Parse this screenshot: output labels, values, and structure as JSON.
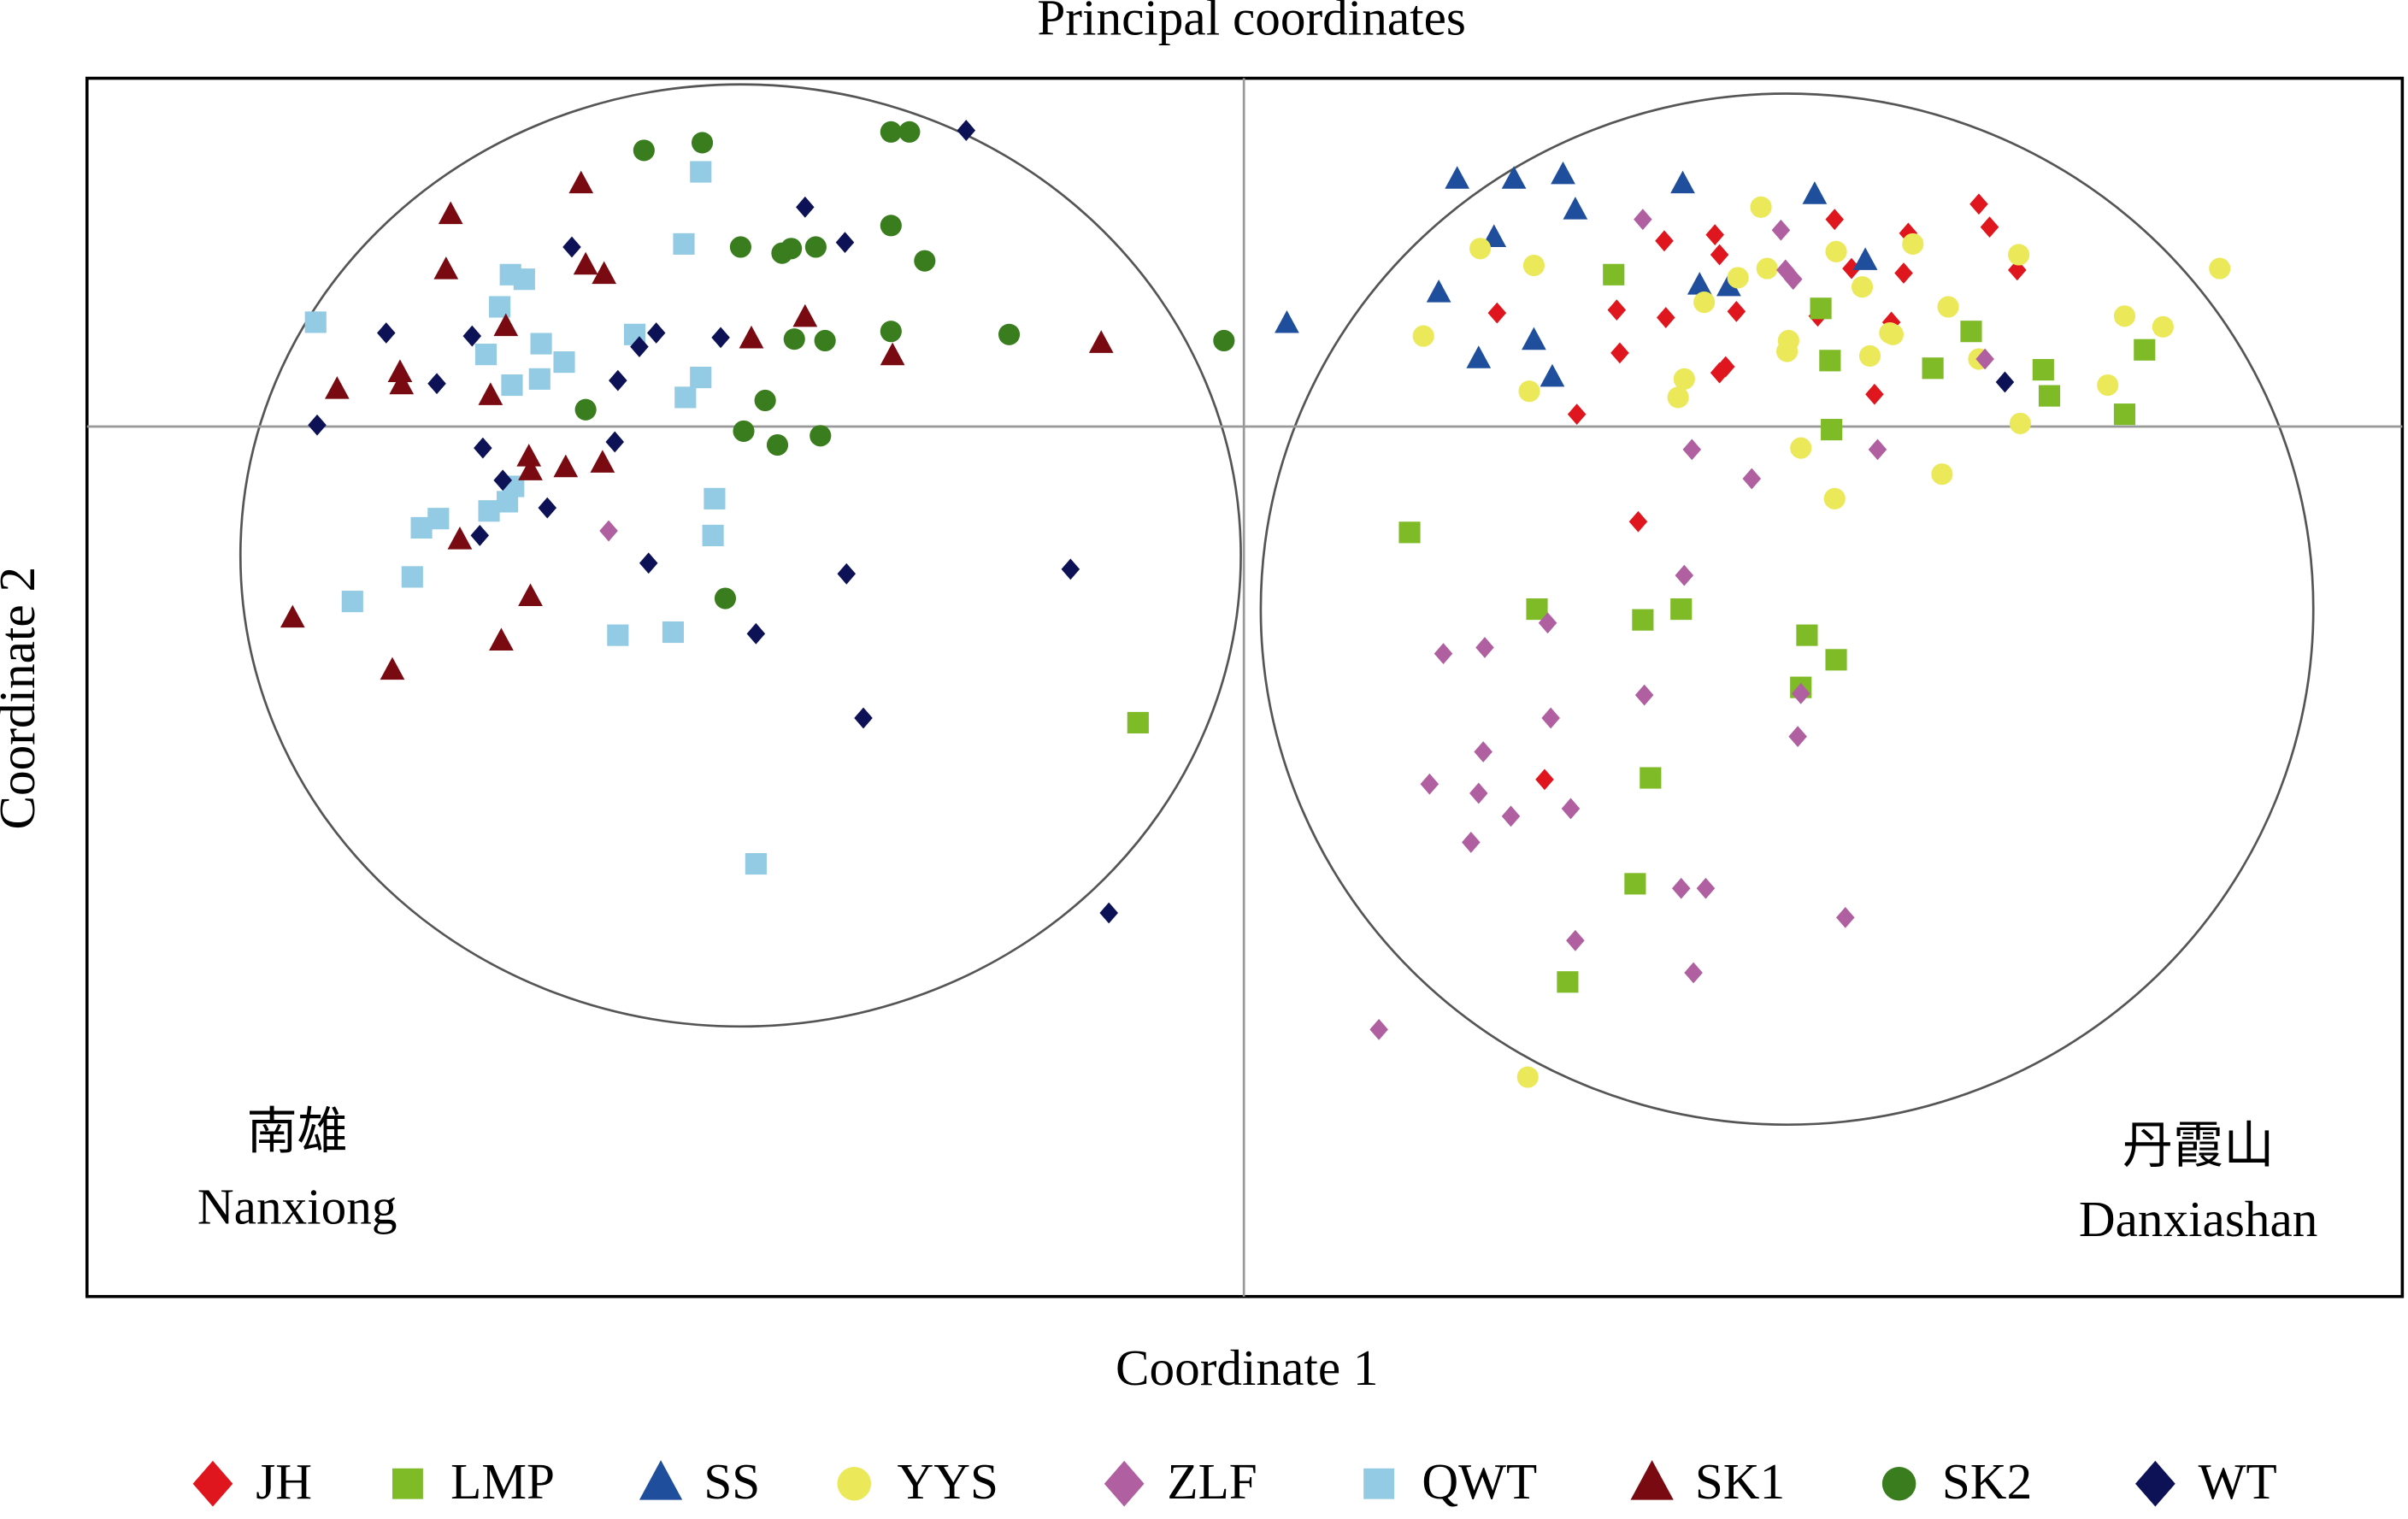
{
  "chart_data": {
    "type": "scatter",
    "title": "Principal coordinates",
    "xlabel": "Coordinate 1",
    "ylabel": "Coordinate 2",
    "xlim": [
      -754,
      755
    ],
    "ylim": [
      -567,
      227
    ],
    "reference_lines": {
      "x": 0,
      "y": 0
    },
    "annotations": [
      "南雄",
      "Nanxiong",
      "丹霞山",
      "Danxiashan"
    ],
    "series": [
      {
        "name": "JH",
        "color": "#e0161e",
        "marker": "diamond",
        "x": [
          385,
          479,
          486,
          433,
          274,
          307,
          310,
          504,
          430,
          396,
          422,
          374,
          165,
          243,
          275,
          321,
          245,
          310,
          314,
          411,
          217,
          257,
          196
        ],
        "values": [
          135,
          145,
          130,
          126,
          121,
          125,
          112,
          102,
          100,
          103,
          68,
          72,
          74,
          76,
          71,
          75,
          48,
          35,
          39,
          21,
          8,
          -62,
          -230
        ]
      },
      {
        "name": "LMP",
        "color": "#7fba27",
        "marker": "square",
        "x": [
          -69,
          241,
          376,
          382,
          449,
          474,
          521,
          525,
          587,
          574,
          383,
          108,
          191,
          260,
          285,
          367,
          386,
          363,
          265,
          255,
          211
        ],
        "values": [
          -193,
          99,
          77,
          43,
          38,
          62,
          37,
          20,
          50,
          8,
          -2,
          -69,
          -119,
          -126,
          -119,
          -136,
          -152,
          -170,
          -229,
          -298,
          -362
        ]
      },
      {
        "name": "SS",
        "color": "#1f4e9c",
        "marker": "triangle",
        "x": [
          28,
          139,
          176,
          208,
          216,
          286,
          372,
          163,
          405,
          297,
          316,
          127,
          189,
          153,
          201
        ],
        "values": [
          67,
          161,
          161,
          164,
          141,
          158,
          151,
          123,
          108,
          92,
          91,
          87,
          56,
          44,
          32
        ]
      },
      {
        "name": "YYS",
        "color": "#ebe85a",
        "marker": "circle",
        "x": [
          337,
          154,
          189,
          386,
          436,
          505,
          636,
          341,
          322,
          403,
          300,
          459,
          574,
          599,
          117,
          355,
          421,
          423,
          354,
          408,
          479,
          287,
          186,
          283,
          563,
          506,
          363,
          455,
          385,
          185
        ],
        "values": [
          143,
          116,
          105,
          114,
          119,
          112,
          103,
          103,
          97,
          91,
          81,
          78,
          72,
          65,
          59,
          56,
          61,
          60,
          49,
          46,
          44,
          31,
          23,
          19,
          27,
          2,
          -14,
          -31,
          -47,
          -424
        ]
      },
      {
        "name": "ZLF",
        "color": "#b05fa0",
        "marker": "diamond",
        "x": [
          -414,
          260,
          350,
          353,
          358,
          483,
          292,
          331,
          413,
          287,
          198,
          157,
          130,
          261,
          363,
          200,
          361,
          156,
          121,
          153,
          213,
          174,
          148,
          285,
          301,
          392,
          216,
          293,
          88
        ],
        "values": [
          -68,
          135,
          128,
          102,
          96,
          44,
          -15,
          -34,
          -15,
          -97,
          -128,
          -144,
          -148,
          -175,
          -174,
          -190,
          -202,
          -212,
          -233,
          -239,
          -249,
          -254,
          -271,
          -301,
          -301,
          -320,
          -335,
          -356,
          -393
        ]
      },
      {
        "name": "QWT",
        "color": "#92cbe3",
        "marker": "square",
        "x": [
          -354,
          -365,
          -478,
          -469,
          -605,
          -485,
          -397,
          -458,
          -494,
          -443,
          -459,
          -354,
          -477,
          -364,
          -476,
          -345,
          -480,
          -492,
          -525,
          -536,
          -346,
          -542,
          -581,
          -372,
          -408,
          -318
        ],
        "values": [
          166,
          119,
          99,
          96,
          68,
          78,
          60,
          54,
          47,
          42,
          31,
          32,
          27,
          19,
          -39,
          -47,
          -49,
          -55,
          -60,
          -66,
          -71,
          -98,
          -114,
          -134,
          -136,
          -285
        ]
      },
      {
        "name": "SK1",
        "color": "#7a0a12",
        "marker": "triangle",
        "x": [
          -517,
          -432,
          -520,
          -429,
          -417,
          -481,
          -321,
          -286,
          -229,
          -93,
          -591,
          -550,
          -549,
          -491,
          -466,
          -442,
          -418,
          -465,
          -511,
          -620,
          -465,
          -484,
          -555
        ],
        "values": [
          138,
          158,
          102,
          105,
          99,
          65,
          57,
          71,
          46,
          54,
          24,
          35,
          27,
          20,
          -20,
          -27,
          -24,
          -29,
          -74,
          -125,
          -111,
          -140,
          -159
        ]
      },
      {
        "name": "SK2",
        "color": "#3a7d1e",
        "marker": "circle",
        "x": [
          -230,
          -218,
          -391,
          -353,
          -230,
          -328,
          -301,
          -295,
          -279,
          -208,
          -230,
          -293,
          -273,
          -153,
          -13,
          -429,
          -312,
          -326,
          -304,
          -276,
          -338
        ],
        "values": [
          192,
          192,
          180,
          185,
          131,
          117,
          113,
          116,
          117,
          108,
          62,
          57,
          56,
          60,
          56,
          11,
          17,
          -3,
          -12,
          -6,
          -112
        ]
      },
      {
        "name": "WT",
        "color": "#0d1257",
        "marker": "diamond",
        "x": [
          -181,
          -286,
          -438,
          -260,
          -559,
          -503,
          -383,
          -394,
          -341,
          -526,
          -408,
          -604,
          -496,
          -410,
          -483,
          -454,
          -498,
          -388,
          -259,
          -113,
          -318,
          -248,
          -88,
          496
        ],
        "values": [
          193,
          143,
          117,
          120,
          61,
          59,
          61,
          52,
          58,
          28,
          30,
          1,
          -14,
          -10,
          -35,
          -53,
          -71,
          -89,
          -96,
          -93,
          -135,
          -190,
          -317,
          29
        ]
      }
    ]
  }
}
